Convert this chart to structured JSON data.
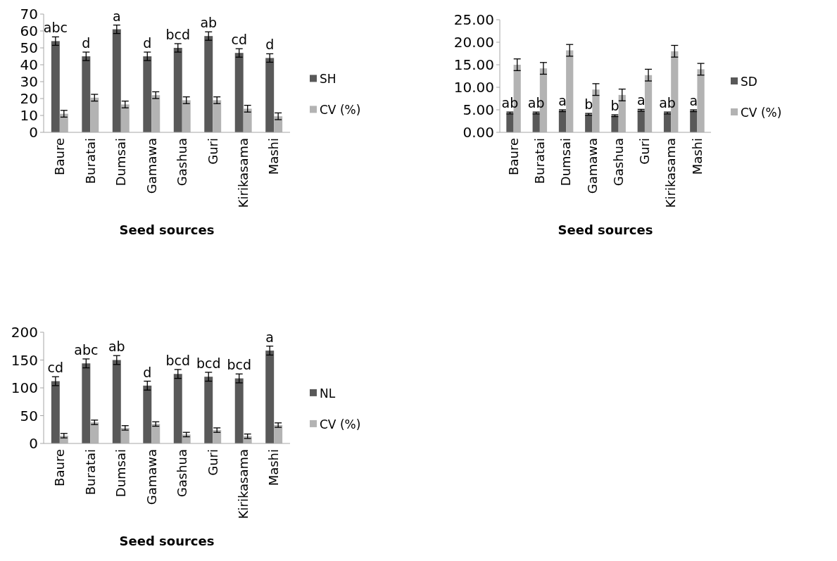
{
  "chart_data": [
    {
      "type": "bar",
      "xlabel": "Seed sources",
      "categories": [
        "Baure",
        "Buratai",
        "Dumsai",
        "Gamawa",
        "Gashua",
        "Guri",
        "Kirikasama",
        "Mashi"
      ],
      "ylim": [
        0,
        70
      ],
      "yticks": [
        0,
        10,
        20,
        30,
        40,
        50,
        60,
        70
      ],
      "legend": "right",
      "grid": false,
      "series": [
        {
          "name": "SH",
          "color": "#595959",
          "values": [
            54,
            45,
            61,
            45,
            50,
            57,
            47,
            44
          ],
          "errors": [
            2.5,
            2.5,
            2.5,
            2.5,
            2.5,
            2.5,
            2.5,
            2.5
          ]
        },
        {
          "name": "CV (%)",
          "color": "#b3b3b3",
          "values": [
            11,
            20.5,
            16.5,
            22,
            19,
            19,
            14,
            9.5
          ],
          "errors": [
            2,
            2,
            2,
            2,
            2,
            2,
            2,
            2
          ]
        }
      ],
      "annotations": [
        "abc",
        "d",
        "a",
        "d",
        "bcd",
        "ab",
        "cd",
        "d"
      ]
    },
    {
      "type": "bar",
      "xlabel": "Seed sources",
      "categories": [
        "Baure",
        "Buratai",
        "Dumsai",
        "Gamawa",
        "Gashua",
        "Guri",
        "Kirikasama",
        "Mashi"
      ],
      "ylim": [
        0,
        25
      ],
      "yticks": [
        {
          "value": 0,
          "label": "0.00"
        },
        {
          "value": 5,
          "label": "5.00"
        },
        {
          "value": 10,
          "label": "10.00"
        },
        {
          "value": 15,
          "label": "15.00"
        },
        {
          "value": 20,
          "label": "20.00"
        },
        {
          "value": 25,
          "label": "25.00"
        }
      ],
      "legend": "right",
      "grid": false,
      "series": [
        {
          "name": "SD",
          "color": "#595959",
          "values": [
            4.3,
            4.3,
            4.8,
            4.0,
            3.7,
            4.9,
            4.3,
            4.8
          ],
          "errors": [
            0.2,
            0.2,
            0.2,
            0.2,
            0.2,
            0.2,
            0.2,
            0.2
          ]
        },
        {
          "name": "CV (%)",
          "color": "#b3b3b3",
          "values": [
            15,
            14.2,
            18.2,
            9.5,
            8.3,
            12.7,
            18,
            14
          ],
          "errors": [
            1.3,
            1.3,
            1.3,
            1.3,
            1.3,
            1.3,
            1.3,
            1.3
          ]
        }
      ],
      "annotations": [
        "ab",
        "ab",
        "a",
        "b",
        "b",
        "a",
        "ab",
        "a"
      ]
    },
    {
      "type": "bar",
      "xlabel": "Seed sources",
      "categories": [
        "Baure",
        "Buratai",
        "Dumsai",
        "Gamawa",
        "Gashua",
        "Guri",
        "Kirikasama",
        "Mashi"
      ],
      "ylim": [
        0,
        200
      ],
      "yticks": [
        0,
        50,
        100,
        150,
        200
      ],
      "legend": "right",
      "grid": false,
      "series": [
        {
          "name": "NL",
          "color": "#595959",
          "values": [
            112,
            144,
            150,
            104,
            125,
            120,
            117,
            167
          ],
          "errors": [
            8,
            8,
            8,
            8,
            8,
            8,
            8,
            8
          ]
        },
        {
          "name": "CV (%)",
          "color": "#b3b3b3",
          "values": [
            14,
            38,
            28,
            35,
            16,
            24,
            13,
            33
          ],
          "errors": [
            4,
            4,
            4,
            4,
            4,
            4,
            4,
            4
          ]
        }
      ],
      "annotations": [
        "cd",
        "abc",
        "ab",
        "d",
        "bcd",
        "bcd",
        "bcd",
        "a"
      ]
    }
  ]
}
